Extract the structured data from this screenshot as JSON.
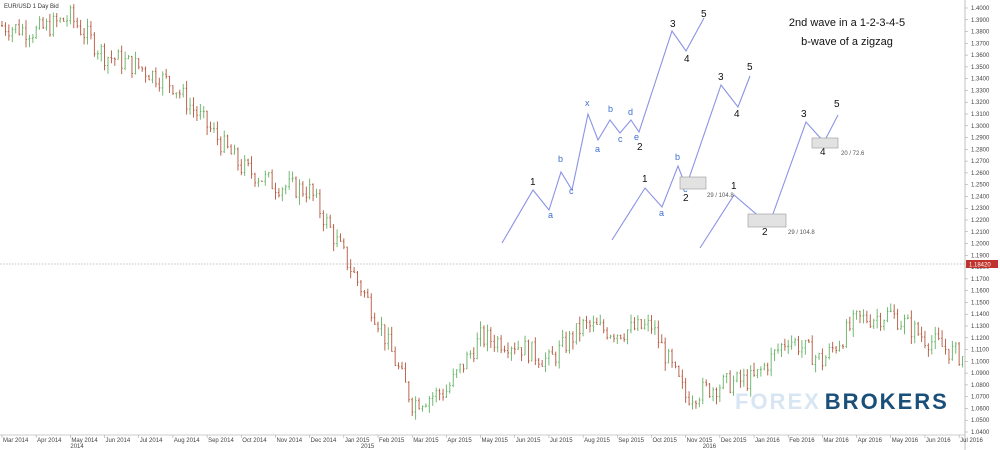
{
  "symbol": "EUR/USD  1 Day Bid",
  "title": {
    "line1": "2nd wave in a 1-2-3-4-5",
    "line2": "b-wave of a zigzag"
  },
  "watermark": {
    "part1": "FOREX",
    "part2": "BROKERS"
  },
  "colors": {
    "up": "#64b264",
    "down": "#b4553c",
    "wave": "#8a93e6",
    "wave_label_small": "#3f6fd0",
    "current_price_bg": "#c0322d",
    "box_fill": "#e2e2e2",
    "box_stroke": "#999999"
  },
  "chart_data": {
    "type": "candlestick",
    "y_axis": {
      "min": 1.04,
      "max": 1.4,
      "step": 0.01,
      "side": "right"
    },
    "current_price": "1.18420",
    "x_ticks": [
      "Mar 2014",
      "Apr 2014",
      "May 2014",
      "Jun 2014",
      "Jul 2014",
      "Aug 2014",
      "Sep 2014",
      "Oct 2014",
      "Nov 2014",
      "Dec 2014",
      "Jan 2015",
      "Feb 2015",
      "Mar 2015",
      "Apr 2015",
      "May 2015",
      "Jun 2015",
      "Jul 2015",
      "Aug 2015",
      "Sep 2015",
      "Oct 2015",
      "Nov 2015",
      "Dec 2015",
      "Jan 2016",
      "Feb 2016",
      "Mar 2016",
      "Apr 2016",
      "May 2016",
      "Jun 2016",
      "Jul 2016"
    ],
    "year_markers": [
      "2014",
      "2015",
      "2016"
    ],
    "price_path": [
      {
        "month": "Mar 2014",
        "price": 1.385
      },
      {
        "month": "Apr 2014",
        "price": 1.38
      },
      {
        "month": "May 2014",
        "price": 1.392
      },
      {
        "month": "Jun 2014",
        "price": 1.36
      },
      {
        "month": "Jul 2014",
        "price": 1.35
      },
      {
        "month": "Aug 2014",
        "price": 1.335
      },
      {
        "month": "Sep 2014",
        "price": 1.3
      },
      {
        "month": "Oct 2014",
        "price": 1.265
      },
      {
        "month": "Nov 2014",
        "price": 1.25
      },
      {
        "month": "Dec 2014",
        "price": 1.245
      },
      {
        "month": "Jan 2015",
        "price": 1.19
      },
      {
        "month": "Feb 2015",
        "price": 1.135
      },
      {
        "month": "Mar 2015",
        "price": 1.065
      },
      {
        "month": "Apr 2015",
        "price": 1.075
      },
      {
        "month": "May 2015",
        "price": 1.12
      },
      {
        "month": "Jun 2015",
        "price": 1.115
      },
      {
        "month": "Jul 2015",
        "price": 1.1
      },
      {
        "month": "Aug 2015",
        "price": 1.13
      },
      {
        "month": "Sep 2015",
        "price": 1.125
      },
      {
        "month": "Oct 2015",
        "price": 1.13
      },
      {
        "month": "Nov 2015",
        "price": 1.07
      },
      {
        "month": "Dec 2015",
        "price": 1.08
      },
      {
        "month": "Jan 2016",
        "price": 1.085
      },
      {
        "month": "Feb 2016",
        "price": 1.12
      },
      {
        "month": "Mar 2016",
        "price": 1.1
      },
      {
        "month": "Apr 2016",
        "price": 1.135
      },
      {
        "month": "May 2016",
        "price": 1.14
      },
      {
        "month": "Jun 2016",
        "price": 1.12
      },
      {
        "month": "Jul 2016",
        "price": 1.105
      }
    ],
    "wave_patterns": [
      {
        "name": "pattern-1",
        "labels": [
          "1",
          "a",
          "b",
          "c",
          "x",
          "a",
          "b",
          "c",
          "d",
          "e",
          "2",
          "3",
          "4",
          "5"
        ]
      },
      {
        "name": "pattern-2",
        "labels": [
          "1",
          "a",
          "b",
          "c",
          "2",
          "3",
          "4",
          "5"
        ]
      },
      {
        "name": "pattern-3",
        "labels": [
          "1",
          "2",
          "3",
          "4",
          "5"
        ]
      }
    ],
    "annotations": [
      "29 / 104.8",
      "29 / 104.8",
      "20 / 72.6"
    ]
  }
}
